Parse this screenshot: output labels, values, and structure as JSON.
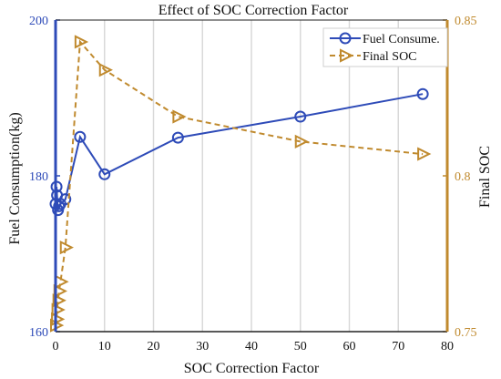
{
  "chart_data": {
    "type": "line",
    "title": "Effect of SOC Correction Factor",
    "xlabel": "SOC Correction Factor",
    "ylabel_left": "Fuel Consumption(kg)",
    "ylabel_right": "Final SOC",
    "xlim": [
      0,
      80
    ],
    "ylim_left": [
      160,
      200
    ],
    "ylim_right": [
      0.75,
      0.85
    ],
    "x_ticks": [
      "0",
      "10",
      "20",
      "30",
      "40",
      "50",
      "60",
      "70",
      "80"
    ],
    "y_left_ticks": [
      "160",
      "180",
      "200"
    ],
    "y_right_ticks": [
      "0.75",
      "0.8",
      "0.85"
    ],
    "grid": true,
    "legend_position": "top-right",
    "series": [
      {
        "name": "Fuel Consume.",
        "axis": "left",
        "color": "#2e4bb8",
        "marker": "circle",
        "x": [
          0,
          0.2,
          0.3,
          0.5,
          0.7,
          1,
          2,
          5,
          10,
          25,
          50,
          75
        ],
        "values": [
          176.4,
          178.6,
          177.5,
          175.6,
          176.1,
          176.4,
          177.0,
          185.0,
          180.2,
          184.9,
          187.6,
          190.5
        ]
      },
      {
        "name": "Final SOC",
        "axis": "right",
        "color": "#c08a2e",
        "marker": "triangle-right",
        "x": [
          0,
          0.2,
          0.3,
          0.5,
          0.7,
          1,
          2,
          5,
          10,
          25,
          50,
          75
        ],
        "values": [
          0.752,
          0.754,
          0.757,
          0.76,
          0.763,
          0.766,
          0.777,
          0.843,
          0.834,
          0.819,
          0.811,
          0.807
        ]
      }
    ]
  }
}
